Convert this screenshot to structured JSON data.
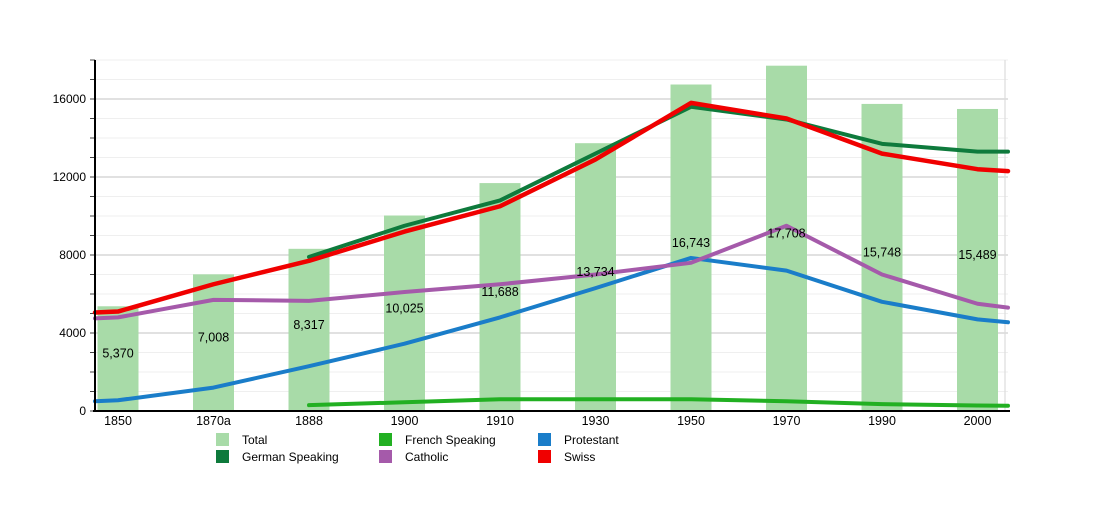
{
  "chart_data": {
    "type": "bar+line",
    "title": "",
    "xlabel": "",
    "ylabel": "",
    "categories": [
      "1850",
      "1870a",
      "1888",
      "1900",
      "1910",
      "1930",
      "1950",
      "1970",
      "1990",
      "2000"
    ],
    "y_axis": {
      "tick_labels": [
        "0",
        "4000",
        "8000",
        "12000",
        "16000"
      ],
      "tick_values": [
        0,
        4000,
        8000,
        12000,
        16000
      ],
      "minor_step": 1000,
      "max": 18000,
      "grid": "on"
    },
    "bars": {
      "name": "Total",
      "color": "#a8dba8",
      "values": [
        5370,
        7008,
        8317,
        10025,
        11688,
        13734,
        16743,
        17708,
        15748,
        15489
      ],
      "labels": [
        "5,370",
        "7,008",
        "8,317",
        "10,025",
        "11,688",
        "13,734",
        "16,743",
        "17,708",
        "15,748",
        "15,489"
      ]
    },
    "lines": [
      {
        "name": "German Speaking",
        "color": "#0e7a3c",
        "width": 4,
        "values": [
          null,
          null,
          7900,
          9500,
          10800,
          13200,
          15600,
          14950,
          13700,
          13300
        ],
        "right_edge": 13300
      },
      {
        "name": "French Speaking",
        "color": "#22b022",
        "width": 4,
        "values": [
          null,
          null,
          300,
          450,
          600,
          600,
          600,
          500,
          350,
          280
        ],
        "right_edge": 270
      },
      {
        "name": "Protestant",
        "color": "#1a7dc9",
        "width": 4,
        "values": [
          550,
          1200,
          2300,
          3450,
          4800,
          6300,
          7850,
          7200,
          5600,
          4700
        ],
        "left_edge": 500,
        "right_edge": 4550
      },
      {
        "name": "Catholic",
        "color": "#a55aaa",
        "width": 4,
        "values": [
          4800,
          5700,
          5650,
          6100,
          6500,
          7000,
          7600,
          9500,
          7000,
          5500
        ],
        "left_edge": 4750,
        "right_edge": 5300
      },
      {
        "name": "Swiss",
        "color": "#f00000",
        "width": 4.5,
        "values": [
          5100,
          6500,
          7700,
          9200,
          10500,
          12900,
          15800,
          15000,
          13200,
          12400
        ],
        "left_edge": 5050,
        "right_edge": 12300
      }
    ],
    "legend": [
      {
        "label": "Total",
        "color": "#a8dba8"
      },
      {
        "label": "German Speaking",
        "color": "#0e7a3c"
      },
      {
        "label": "French Speaking",
        "color": "#22b022"
      },
      {
        "label": "Catholic",
        "color": "#a55aaa"
      },
      {
        "label": "Protestant",
        "color": "#1a7dc9"
      },
      {
        "label": "Swiss",
        "color": "#f00000"
      }
    ],
    "legend_position": "bottom"
  }
}
